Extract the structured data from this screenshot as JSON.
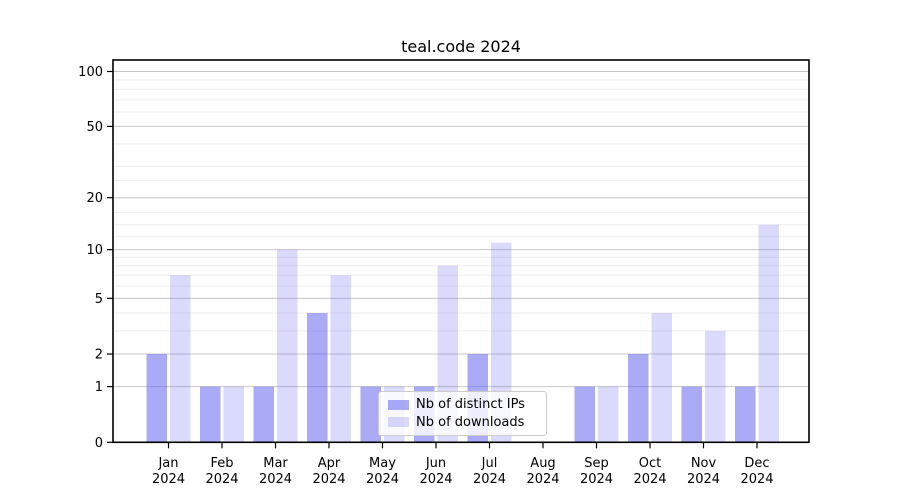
{
  "figure": {
    "title": "teal.code 2024"
  },
  "chart_data": {
    "type": "bar",
    "title": "teal.code 2024",
    "xlabel": "",
    "ylabel": "",
    "yscale": "log1p",
    "ylim": [
      0,
      115
    ],
    "yticks": [
      0,
      1,
      2,
      5,
      10,
      20,
      50,
      100
    ],
    "minor_gridlines": [
      3,
      4,
      6,
      7,
      8,
      9,
      12,
      14,
      16.5,
      25,
      30,
      40,
      60,
      70,
      80,
      90
    ],
    "categories": [
      "Jan",
      "Feb",
      "Mar",
      "Apr",
      "May",
      "Jun",
      "Jul",
      "Aug",
      "Sep",
      "Oct",
      "Nov",
      "Dec"
    ],
    "year_label": "2024",
    "grid": true,
    "legend_position": "lower center",
    "series": [
      {
        "name": "Nb of distinct IPs",
        "color": "#5555f0",
        "fill_alpha": 0.5,
        "values": [
          2,
          1,
          1,
          4,
          1,
          1,
          2,
          0,
          1,
          2,
          1,
          1
        ]
      },
      {
        "name": "Nb of downloads",
        "color": "#5555f0",
        "fill_alpha": 0.22,
        "values": [
          7,
          1,
          10,
          7,
          1,
          8,
          11,
          0,
          1,
          4,
          3,
          14
        ]
      }
    ],
    "colors": {
      "axis": "#000000",
      "major_grid": "#c8c8c8",
      "minor_grid": "#ededed",
      "background": "#ffffff",
      "legend_border": "#cccccc",
      "text": "#000000"
    }
  }
}
